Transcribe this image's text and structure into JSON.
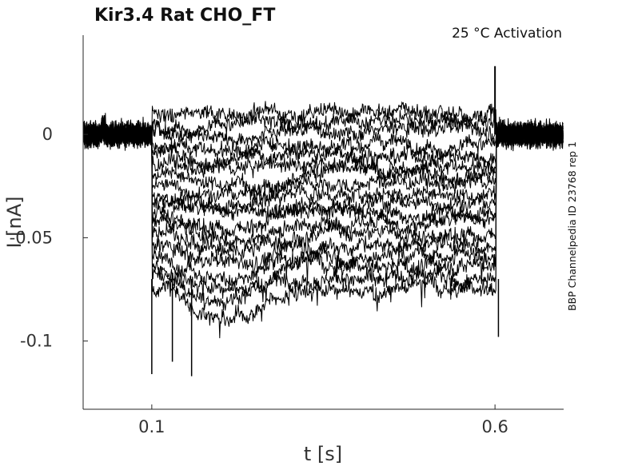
{
  "chart_data": {
    "type": "line",
    "title": "Kir3.4  Rat  CHO_FT",
    "condition": "25 °C  Activation",
    "side_label": "BBP Channelpedia ID 23768 rep 1",
    "xlabel": "t [s]",
    "ylabel": "I [nA]",
    "xlim": [
      0.0,
      0.7
    ],
    "ylim": [
      -0.133,
      0.048
    ],
    "xticks": [
      0.1,
      0.6
    ],
    "xtick_labels": [
      "0.1",
      "0.6"
    ],
    "yticks": [
      0,
      -0.05,
      -0.1
    ],
    "ytick_labels": [
      "0",
      "-0.05",
      "-0.1"
    ],
    "grid": false,
    "legend": "none",
    "line_color": "#000000",
    "pulse_start": 0.1,
    "pulse_end": 0.6,
    "baseline": 0,
    "series_steady_levels": [
      0.011,
      0.006,
      0.002,
      -0.004,
      -0.009,
      -0.014,
      -0.019,
      -0.024,
      -0.029,
      -0.033,
      -0.038,
      -0.043,
      -0.048,
      -0.054,
      -0.059,
      -0.064,
      -0.069,
      -0.075
    ]
  }
}
